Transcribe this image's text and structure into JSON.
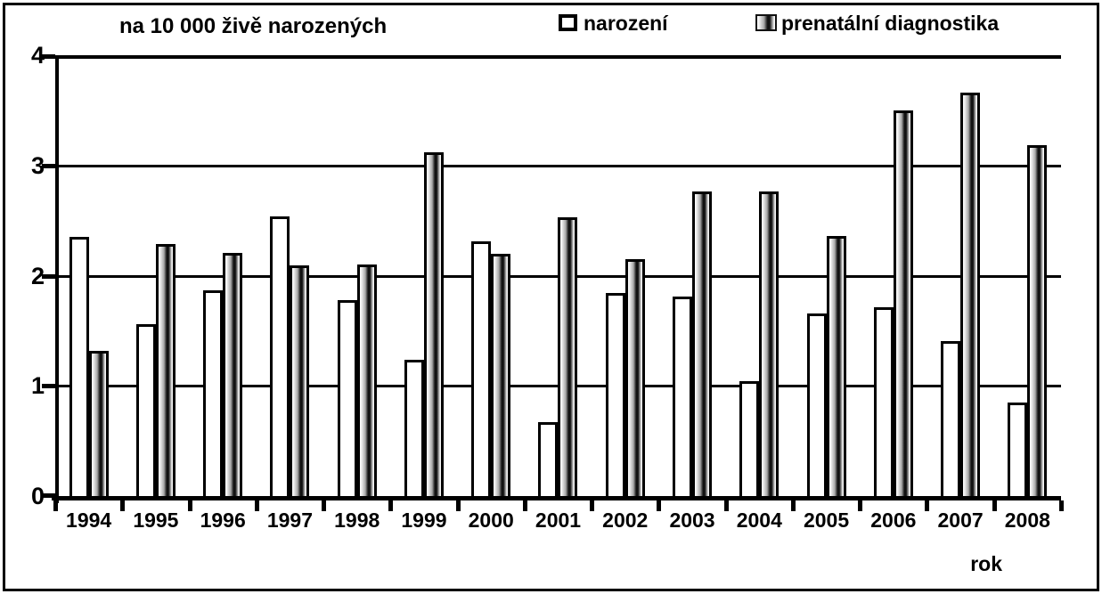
{
  "chart_data": {
    "type": "bar",
    "title": "na 10 000 živě narozených",
    "xlabel": "rok",
    "ylabel": "",
    "ylim": [
      0,
      4
    ],
    "yticks": [
      0,
      1,
      2,
      3,
      4
    ],
    "grid": true,
    "legend_position": "top",
    "categories": [
      "1994",
      "1995",
      "1996",
      "1997",
      "1998",
      "1999",
      "2000",
      "2001",
      "2002",
      "2003",
      "2004",
      "2005",
      "2006",
      "2007",
      "2008"
    ],
    "series": [
      {
        "name": "narození",
        "fill": "white",
        "values": [
          2.35,
          1.56,
          1.87,
          2.54,
          1.78,
          1.24,
          2.31,
          0.67,
          1.84,
          1.81,
          1.04,
          1.66,
          1.71,
          1.41,
          0.85
        ]
      },
      {
        "name": "prenatální diagnostika",
        "fill": "striped-gradient",
        "values": [
          1.32,
          2.29,
          2.21,
          2.09,
          2.1,
          3.12,
          2.2,
          2.53,
          2.15,
          2.76,
          2.76,
          2.36,
          3.5,
          3.66,
          3.18
        ]
      }
    ],
    "colors": {
      "outline": "#000000",
      "background": "#ffffff",
      "bar_white": "#ffffff",
      "stripe_dark": "#111111"
    }
  }
}
